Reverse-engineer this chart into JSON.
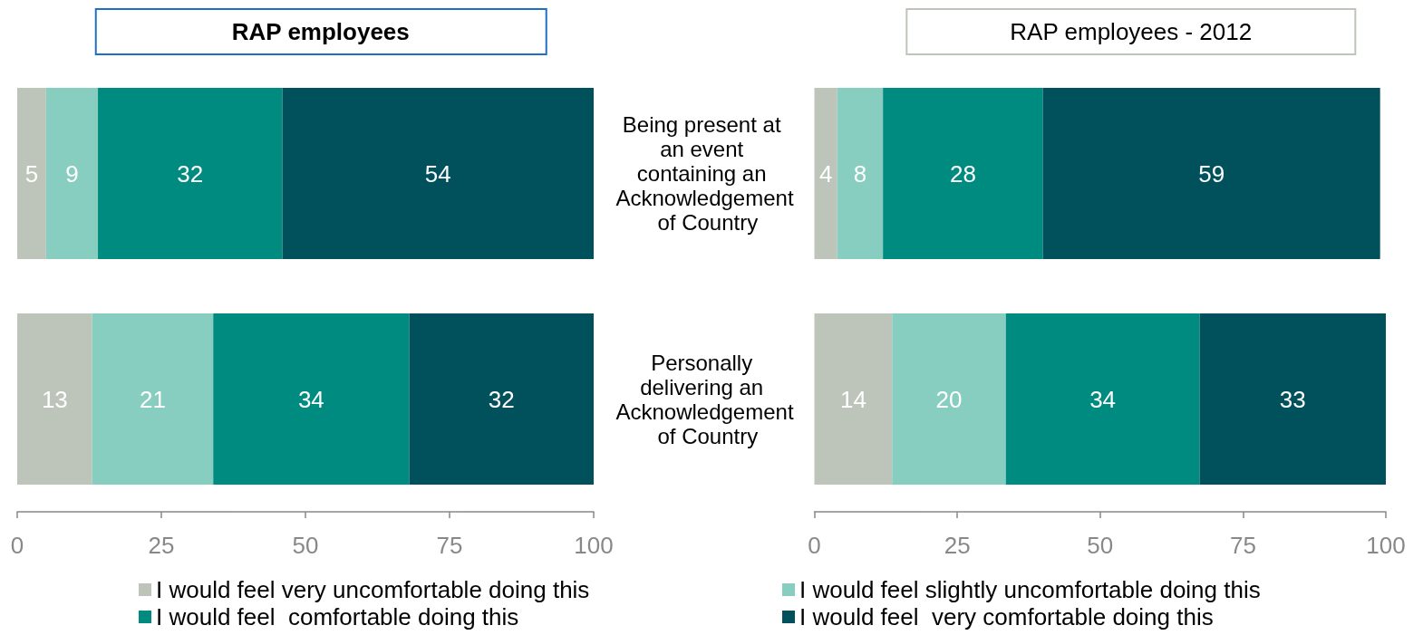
{
  "chart_data": [
    {
      "type": "bar",
      "title": "RAP employees",
      "orientation": "horizontal",
      "stacked": true,
      "categories": [
        "Being present at an event containing an Acknowledgement of Country",
        "Personally delivering an Acknowledgement of Country"
      ],
      "series": [
        {
          "name": "I would feel very uncomfortable doing this",
          "color": "#BDC4B9",
          "values": [
            5,
            13
          ]
        },
        {
          "name": "I would feel slightly uncomfortable doing this",
          "color": "#88CEC0",
          "values": [
            9,
            21
          ]
        },
        {
          "name": "I would feel  comfortable doing this",
          "color": "#008B80",
          "values": [
            32,
            34
          ]
        },
        {
          "name": "I would feel  very comfortable doing this",
          "color": "#01515C",
          "values": [
            54,
            32
          ]
        }
      ],
      "xlim": [
        0,
        100
      ],
      "xticks": [
        0,
        25,
        50,
        75,
        100
      ],
      "data_labels": true,
      "legend": "bottom",
      "tick_labels": "x"
    },
    {
      "type": "bar",
      "title": "RAP employees - 2012",
      "orientation": "horizontal",
      "stacked": true,
      "categories": [
        "Being present at an event containing an Acknowledgement of Country",
        "Personally delivering an Acknowledgement of Country"
      ],
      "series": [
        {
          "color": "#BDC4B9",
          "values": [
            4,
            13.6
          ],
          "value_labels": [
            "4",
            "14"
          ]
        },
        {
          "color": "#88CEC0",
          "values": [
            8,
            19.9
          ],
          "value_labels": [
            "8",
            "20"
          ]
        },
        {
          "color": "#008B80",
          "values": [
            28,
            33.9
          ],
          "value_labels": [
            "28",
            "34"
          ]
        },
        {
          "color": "#01515C",
          "values": [
            59,
            32.6
          ],
          "value_labels": [
            "59",
            "33"
          ]
        }
      ],
      "xlim": [
        0,
        100
      ],
      "xticks": [
        0,
        25,
        50,
        75,
        100
      ]
    }
  ]
}
